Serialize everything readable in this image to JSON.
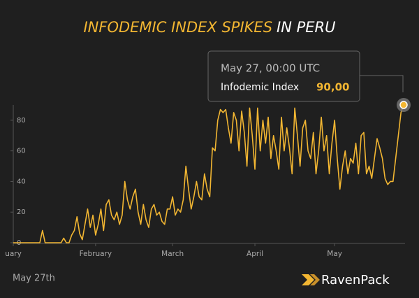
{
  "chart_data": {
    "type": "line",
    "title_highlight": "INFODEMIC INDEX SPIKES",
    "title_rest": "IN PERU",
    "series": [
      {
        "name": "Infodemic Index",
        "color": "#f2b632",
        "values": [
          0,
          0,
          0,
          0,
          0,
          0,
          0,
          0,
          0,
          0,
          0,
          8,
          0,
          0,
          0,
          0,
          0,
          0,
          0,
          3,
          0,
          0,
          5,
          8,
          17,
          6,
          2,
          12,
          22,
          10,
          18,
          5,
          12,
          22,
          8,
          25,
          28,
          18,
          15,
          20,
          12,
          18,
          40,
          28,
          22,
          30,
          35,
          20,
          12,
          25,
          15,
          10,
          22,
          25,
          18,
          20,
          14,
          12,
          22,
          22,
          30,
          18,
          22,
          20,
          28,
          50,
          35,
          22,
          30,
          40,
          30,
          28,
          45,
          35,
          30,
          62,
          60,
          80,
          87,
          85,
          87,
          75,
          65,
          85,
          80,
          60,
          86,
          72,
          50,
          88,
          70,
          48,
          88,
          60,
          80,
          65,
          82,
          55,
          70,
          60,
          48,
          82,
          60,
          75,
          62,
          45,
          88,
          70,
          50,
          75,
          80,
          60,
          55,
          72,
          45,
          60,
          82,
          60,
          70,
          45,
          65,
          80,
          55,
          35,
          50,
          60,
          45,
          55,
          52,
          65,
          45,
          70,
          72,
          45,
          50,
          42,
          55,
          68,
          62,
          55,
          42,
          38,
          40,
          40,
          55,
          70,
          85,
          90
        ]
      }
    ],
    "xlim": [
      0,
      147
    ],
    "xticks": [
      {
        "value": 0,
        "label": "uary"
      },
      {
        "value": 31,
        "label": "February"
      },
      {
        "value": 60,
        "label": "March"
      },
      {
        "value": 91,
        "label": "April"
      },
      {
        "value": 121,
        "label": "May"
      }
    ],
    "ylim": [
      0,
      90
    ],
    "yticks": [
      0,
      20,
      40,
      60,
      80
    ],
    "tooltip": {
      "title": "May 27, 00:00 UTC",
      "value_label": "90,00"
    },
    "footer": "May 27th",
    "brand": "RavenPack"
  }
}
